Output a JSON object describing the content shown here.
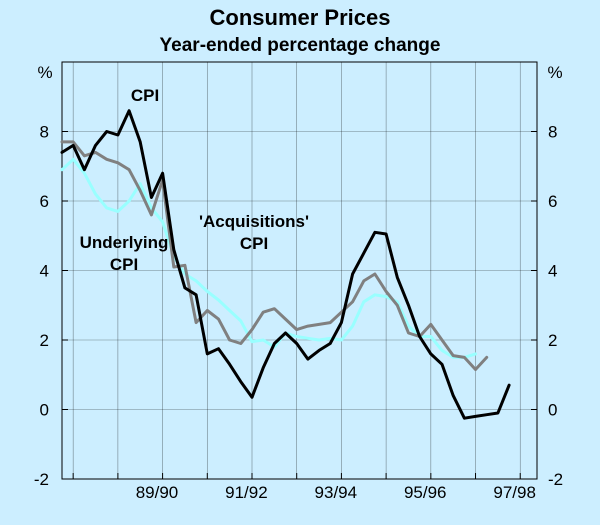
{
  "chart_data": {
    "type": "line",
    "title": "Consumer Prices",
    "subtitle": "Year-ended percentage change",
    "ylabel_left": "%",
    "ylabel_right": "%",
    "ylim": [
      -2,
      10
    ],
    "xlim": [
      1987.75,
      1998.375
    ],
    "yticks": [
      -2,
      0,
      2,
      4,
      6,
      8
    ],
    "xtick_labels": [
      {
        "label": "89/90",
        "at": 1989.875
      },
      {
        "label": "91/92",
        "at": 1991.875
      },
      {
        "label": "93/94",
        "at": 1993.875
      },
      {
        "label": "95/96",
        "at": 1995.875
      },
      {
        "label": "97/98",
        "at": 1997.875
      }
    ],
    "colors": {
      "background": "#cceeff",
      "plot_background": "#cceeff",
      "axis": "#000000",
      "grid": "#000000"
    },
    "series": [
      {
        "name": "CPI",
        "color": "#000000",
        "width": 3,
        "x": [
          1987.75,
          1988.0,
          1988.25,
          1988.5,
          1988.75,
          1989.0,
          1989.25,
          1989.5,
          1989.75,
          1990.0,
          1990.25,
          1990.5,
          1990.75,
          1991.0,
          1991.25,
          1991.5,
          1991.75,
          1992.0,
          1992.25,
          1992.5,
          1992.75,
          1993.0,
          1993.25,
          1993.5,
          1993.75,
          1994.0,
          1994.25,
          1994.5,
          1994.75,
          1995.0,
          1995.25,
          1995.5,
          1995.75,
          1996.0,
          1996.25,
          1996.5,
          1996.75,
          1997.0,
          1997.25,
          1997.5,
          1997.75,
          1998.0,
          1998.25,
          1998.375
        ],
        "values": [
          7.4,
          7.6,
          6.9,
          7.6,
          8.0,
          7.9,
          8.6,
          7.7,
          6.1,
          6.8,
          4.6,
          3.5,
          3.3,
          1.6,
          1.75,
          1.3,
          0.8,
          0.35,
          1.2,
          1.9,
          2.2,
          1.9,
          1.45,
          1.7,
          1.9,
          2.5,
          3.9,
          4.5,
          5.1,
          5.05,
          3.8,
          3.0,
          2.1,
          1.6,
          1.3,
          0.4,
          -0.25,
          -0.2,
          -0.15,
          -0.1,
          0.7,
          null,
          null,
          null
        ]
      },
      {
        "name": "'Acquisitions' CPI",
        "color": "#808080",
        "width": 3,
        "x": [
          1987.75,
          1988.0,
          1988.25,
          1988.5,
          1988.75,
          1989.0,
          1989.25,
          1989.5,
          1989.75,
          1990.0,
          1990.25,
          1990.5,
          1990.75,
          1991.0,
          1991.25,
          1991.5,
          1991.75,
          1992.0,
          1992.25,
          1992.5,
          1992.75,
          1993.0,
          1993.25,
          1993.5,
          1993.75,
          1994.0,
          1994.25,
          1994.5,
          1994.75,
          1995.0,
          1995.25,
          1995.5,
          1995.75,
          1996.0,
          1996.25,
          1996.5,
          1996.75,
          1997.0,
          1997.25,
          1997.5,
          1997.75,
          1998.0,
          1998.25,
          1998.375
        ],
        "values": [
          7.7,
          7.7,
          7.3,
          7.4,
          7.2,
          7.1,
          6.9,
          6.3,
          5.6,
          6.6,
          4.1,
          4.15,
          2.5,
          2.85,
          2.6,
          2.0,
          1.9,
          2.3,
          2.8,
          2.9,
          2.6,
          2.3,
          2.4,
          2.45,
          2.5,
          2.8,
          3.1,
          3.7,
          3.9,
          3.4,
          3.0,
          2.2,
          2.1,
          2.45,
          2.0,
          1.55,
          1.5,
          1.15,
          1.5,
          null,
          null,
          null,
          null,
          null
        ]
      },
      {
        "name": "Underlying CPI",
        "color": "#99ffff",
        "width": 3,
        "x": [
          1987.75,
          1988.0,
          1988.25,
          1988.5,
          1988.75,
          1989.0,
          1989.25,
          1989.5,
          1989.75,
          1990.0,
          1990.25,
          1990.5,
          1990.75,
          1991.0,
          1991.25,
          1991.5,
          1991.75,
          1992.0,
          1992.25,
          1992.5,
          1992.75,
          1993.0,
          1993.25,
          1993.5,
          1993.75,
          1994.0,
          1994.25,
          1994.5,
          1994.75,
          1995.0,
          1995.25,
          1995.5,
          1995.75,
          1996.0,
          1996.25,
          1996.5,
          1996.75,
          1997.0,
          1997.25,
          1997.5,
          1997.75,
          1998.0,
          1998.25,
          1998.375
        ],
        "values": [
          6.9,
          7.2,
          6.8,
          6.2,
          5.8,
          5.7,
          6.0,
          6.5,
          5.8,
          5.4,
          4.4,
          3.9,
          3.7,
          3.4,
          3.15,
          2.85,
          2.55,
          1.95,
          2.0,
          1.8,
          2.2,
          2.1,
          2.05,
          2.0,
          2.05,
          2.0,
          2.4,
          3.1,
          3.3,
          3.25,
          3.1,
          2.4,
          2.1,
          2.1,
          1.7,
          1.5,
          1.5,
          1.6,
          null,
          null,
          null,
          null,
          null,
          null
        ]
      }
    ],
    "annotations": [
      {
        "text": "CPI",
        "series": "CPI"
      },
      {
        "text": "'Acquisitions'",
        "series": "'Acquisitions' CPI"
      },
      {
        "text": "CPI",
        "series": "'Acquisitions' CPI"
      },
      {
        "text": "Underlying",
        "series": "Underlying CPI"
      },
      {
        "text": "CPI",
        "series": "Underlying CPI"
      }
    ]
  }
}
